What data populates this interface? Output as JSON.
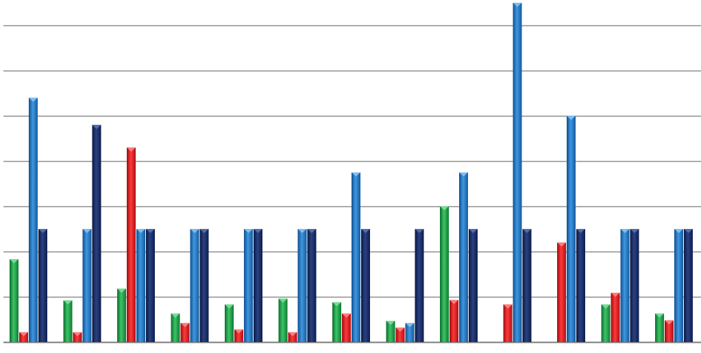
{
  "chart_data": {
    "type": "bar",
    "title": "",
    "xlabel": "",
    "ylabel": "",
    "categories": [
      "",
      "",
      "",
      "",
      "",
      "",
      "",
      "",
      "",
      "",
      "",
      "",
      ""
    ],
    "ylim": [
      0,
      75
    ],
    "grid": true,
    "legend": "none",
    "series": [
      {
        "color": "#1fa64a",
        "values": [
          18.3,
          9.2,
          11.8,
          6.3,
          8.3,
          9.6,
          8.8,
          4.7,
          30.0,
          0,
          0,
          8.3,
          6.3
        ]
      },
      {
        "color": "#e8141c",
        "values": [
          2.2,
          2.2,
          43.0,
          4.2,
          2.8,
          2.2,
          6.3,
          3.2,
          9.3,
          8.3,
          22.0,
          10.9,
          4.8
        ]
      },
      {
        "color": "#1f74c4",
        "values": [
          54.0,
          25.0,
          25.0,
          25.0,
          25.0,
          25.0,
          37.5,
          4.2,
          37.5,
          75.0,
          50.0,
          25.0,
          25.0
        ]
      },
      {
        "color": "#16285e",
        "values": [
          25.0,
          48.0,
          25.0,
          25.0,
          25.0,
          25.0,
          25.0,
          25.0,
          25.0,
          25.0,
          25.0,
          25.0,
          25.0
        ]
      }
    ]
  }
}
